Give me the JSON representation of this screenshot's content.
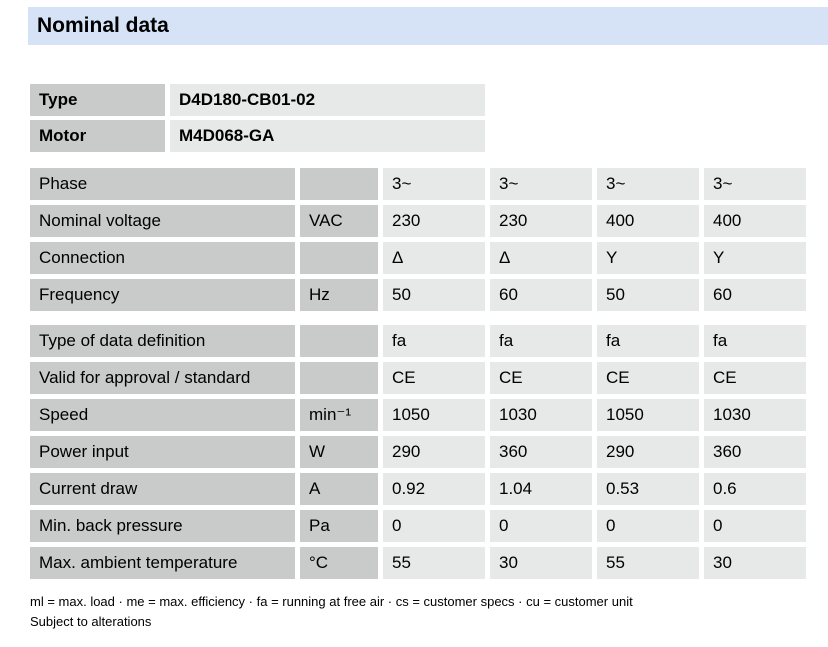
{
  "page": {
    "title": "Nominal data",
    "footnote_abbreviations": "ml = max. load · me = max. efficiency · fa = running at free air · cs = customer specs · cu = customer unit",
    "footnote_disclaimer": "Subject to alterations"
  },
  "identity": {
    "rows": [
      {
        "label": "Type",
        "value": "D4D180-CB01-02"
      },
      {
        "label": "Motor",
        "value": "M4D068-GA"
      }
    ]
  },
  "nominal_table": {
    "blocks": [
      {
        "rows": [
          {
            "label": "Phase",
            "unit": "",
            "values": [
              "3~",
              "3~",
              "3~",
              "3~"
            ]
          },
          {
            "label": "Nominal voltage",
            "unit": "VAC",
            "values": [
              "230",
              "230",
              "400",
              "400"
            ]
          },
          {
            "label": "Connection",
            "unit": "",
            "values": [
              "Δ",
              "Δ",
              "Y",
              "Y"
            ]
          },
          {
            "label": "Frequency",
            "unit": "Hz",
            "values": [
              "50",
              "60",
              "50",
              "60"
            ]
          }
        ]
      },
      {
        "rows": [
          {
            "label": "Type of data definition",
            "unit": "",
            "values": [
              "fa",
              "fa",
              "fa",
              "fa"
            ]
          },
          {
            "label": "Valid for approval / standard",
            "unit": "",
            "values": [
              "CE",
              "CE",
              "CE",
              "CE"
            ]
          },
          {
            "label": "Speed",
            "unit": "min⁻¹",
            "values": [
              "1050",
              "1030",
              "1050",
              "1030"
            ]
          },
          {
            "label": "Power input",
            "unit": "W",
            "values": [
              "290",
              "360",
              "290",
              "360"
            ]
          },
          {
            "label": "Current draw",
            "unit": "A",
            "values": [
              "0.92",
              "1.04",
              "0.53",
              "0.6"
            ]
          },
          {
            "label": "Min. back pressure",
            "unit": "Pa",
            "values": [
              "0",
              "0",
              "0",
              "0"
            ]
          },
          {
            "label": "Max. ambient temperature",
            "unit": "°C",
            "values": [
              "55",
              "30",
              "55",
              "30"
            ]
          }
        ]
      }
    ]
  },
  "colors": {
    "band_blue": "#d6e3f7",
    "label_gray": "#c8cbca",
    "value_gray": "#e7e8e8"
  }
}
